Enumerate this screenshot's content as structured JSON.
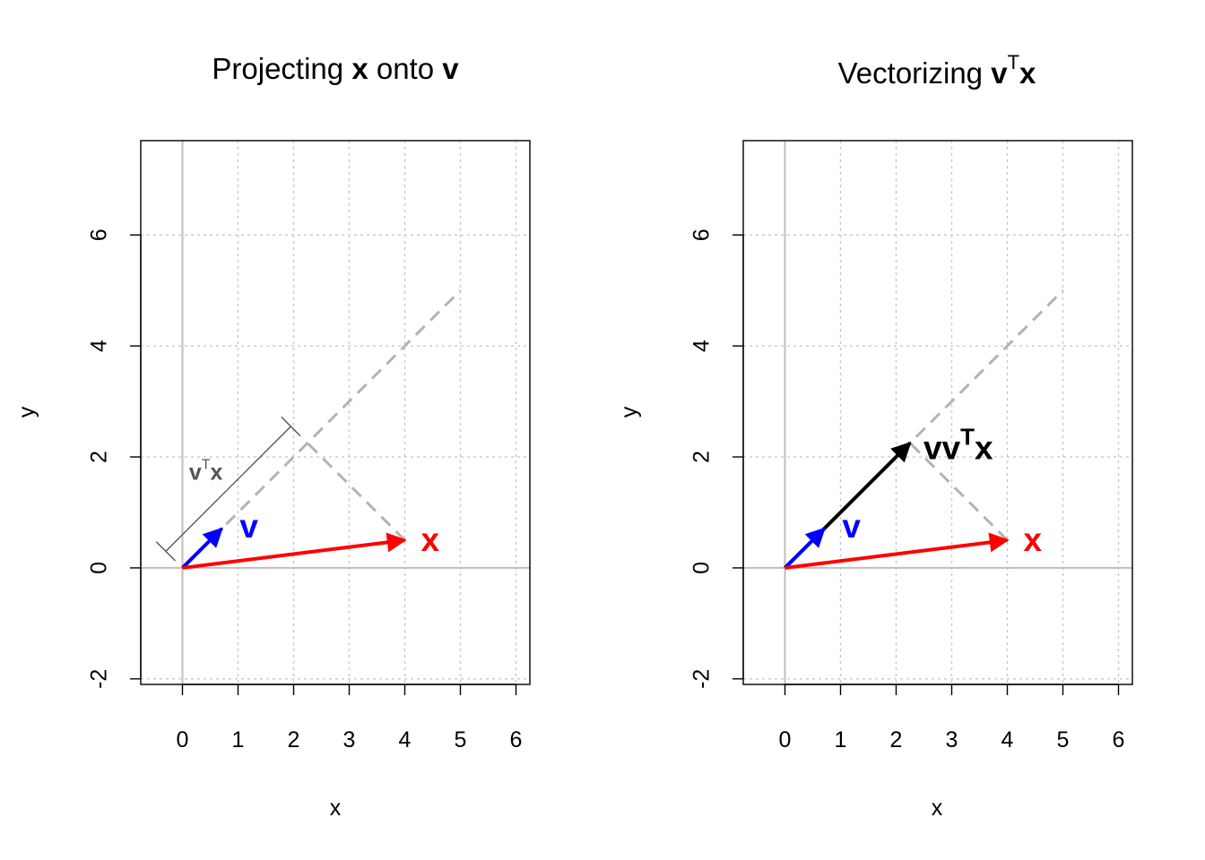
{
  "chart_data": [
    {
      "type": "line",
      "title": {
        "text": "Projecting ",
        "bold1": "x",
        "mid": " onto ",
        "bold2": "v"
      },
      "xlabel": "x",
      "ylabel": "y",
      "xlim": [
        -0.75,
        6.25
      ],
      "ylim": [
        -2.1,
        7.7
      ],
      "xticks": [
        0,
        1,
        2,
        3,
        4,
        5,
        6
      ],
      "yticks": [
        -2,
        0,
        2,
        4,
        6
      ],
      "grid": true,
      "line_v": {
        "x": [
          0,
          5
        ],
        "y": [
          0,
          5
        ],
        "style": "dashed",
        "color": "#b3b3b3"
      },
      "perpendicular": {
        "x": [
          4,
          2.25
        ],
        "y": [
          0.5,
          2.25
        ],
        "style": "dashed",
        "color": "#b3b3b3"
      },
      "vectors": [
        {
          "name": "v",
          "label": "v",
          "from": [
            0,
            0
          ],
          "to": [
            0.707,
            0.707
          ],
          "color": "#0000ff"
        },
        {
          "name": "x",
          "label": "x",
          "from": [
            0,
            0
          ],
          "to": [
            4,
            0.5
          ],
          "color": "#ff0000"
        }
      ],
      "bracket": {
        "from": [
          -0.3,
          0.3
        ],
        "to": [
          1.95,
          2.55
        ],
        "label_main": "v",
        "label_sup": "T",
        "label_end": "x",
        "color": "#555555"
      }
    },
    {
      "type": "line",
      "title": {
        "text": "Vectorizing ",
        "bold1": "v",
        "sup": "T",
        "bold2": "x"
      },
      "xlabel": "x",
      "ylabel": "y",
      "xlim": [
        -0.75,
        6.25
      ],
      "ylim": [
        -2.1,
        7.7
      ],
      "xticks": [
        0,
        1,
        2,
        3,
        4,
        5,
        6
      ],
      "yticks": [
        -2,
        0,
        2,
        4,
        6
      ],
      "grid": true,
      "line_v": {
        "x": [
          0,
          5
        ],
        "y": [
          0,
          5
        ],
        "style": "dashed",
        "color": "#b3b3b3"
      },
      "perpendicular": {
        "x": [
          4,
          2.25
        ],
        "y": [
          0.5,
          2.25
        ],
        "style": "dashed",
        "color": "#b3b3b3"
      },
      "vectors": [
        {
          "name": "v",
          "label": "v",
          "from": [
            0,
            0
          ],
          "to": [
            0.707,
            0.707
          ],
          "color": "#0000ff"
        },
        {
          "name": "x",
          "label": "x",
          "from": [
            0,
            0
          ],
          "to": [
            4,
            0.5
          ],
          "color": "#ff0000"
        },
        {
          "name": "vvTx",
          "label": "vv",
          "label_sup": "T",
          "label_end": "x",
          "from": [
            0,
            0
          ],
          "to": [
            2.25,
            2.25
          ],
          "color": "#000000"
        }
      ]
    }
  ]
}
